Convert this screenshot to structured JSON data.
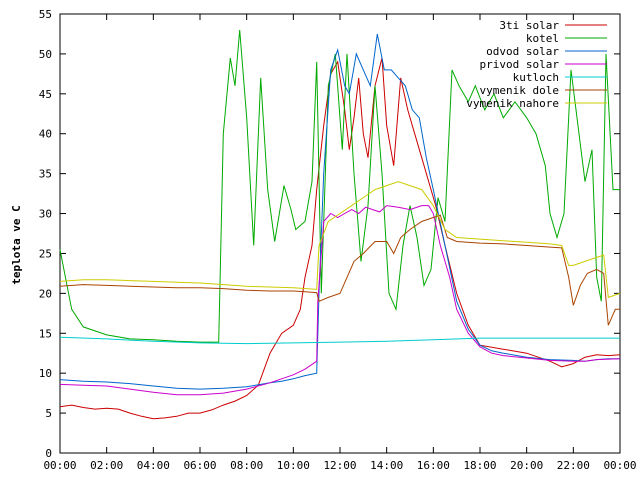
{
  "chart_data": {
    "type": "line",
    "title": "",
    "xlabel": "",
    "ylabel": "teplota ve C",
    "xlim": [
      0,
      24
    ],
    "ylim": [
      0,
      55
    ],
    "x_ticks": [
      "00:00",
      "02:00",
      "04:00",
      "06:00",
      "08:00",
      "10:00",
      "12:00",
      "14:00",
      "16:00",
      "18:00",
      "20:00",
      "22:00",
      "00:00"
    ],
    "y_ticks": [
      0,
      5,
      10,
      15,
      20,
      25,
      30,
      35,
      40,
      45,
      50,
      55
    ],
    "grid": false,
    "legend_position": "top-right",
    "series": [
      {
        "name": "3ti solar",
        "color": "#cc0000",
        "points": [
          [
            0,
            5.8
          ],
          [
            0.5,
            6.0
          ],
          [
            1,
            5.7
          ],
          [
            1.5,
            5.5
          ],
          [
            2,
            5.6
          ],
          [
            2.5,
            5.5
          ],
          [
            3,
            5.0
          ],
          [
            3.5,
            4.6
          ],
          [
            4,
            4.3
          ],
          [
            4.5,
            4.4
          ],
          [
            5,
            4.6
          ],
          [
            5.5,
            5.0
          ],
          [
            6,
            5.0
          ],
          [
            6.5,
            5.4
          ],
          [
            7,
            6.0
          ],
          [
            7.5,
            6.5
          ],
          [
            8,
            7.2
          ],
          [
            8.5,
            8.5
          ],
          [
            9,
            12.5
          ],
          [
            9.5,
            15.0
          ],
          [
            10,
            16.0
          ],
          [
            10.3,
            18.0
          ],
          [
            10.5,
            22.0
          ],
          [
            10.8,
            26.0
          ],
          [
            11,
            33.0
          ],
          [
            11.3,
            41.0
          ],
          [
            11.6,
            47.5
          ],
          [
            11.9,
            49.0
          ],
          [
            12.2,
            43.0
          ],
          [
            12.4,
            38.0
          ],
          [
            12.6,
            42.0
          ],
          [
            12.8,
            47.0
          ],
          [
            13.0,
            40.0
          ],
          [
            13.2,
            37.0
          ],
          [
            13.5,
            46.0
          ],
          [
            13.8,
            49.5
          ],
          [
            14.0,
            41.0
          ],
          [
            14.3,
            36.0
          ],
          [
            14.6,
            47.0
          ],
          [
            14.9,
            43.0
          ],
          [
            15.2,
            40.0
          ],
          [
            15.5,
            37.0
          ],
          [
            15.8,
            34.0
          ],
          [
            16.1,
            31.0
          ],
          [
            16.5,
            26.0
          ],
          [
            17,
            20.0
          ],
          [
            17.5,
            16.0
          ],
          [
            18,
            13.5
          ],
          [
            19,
            13.0
          ],
          [
            20,
            12.5
          ],
          [
            21,
            11.5
          ],
          [
            21.5,
            10.8
          ],
          [
            22,
            11.2
          ],
          [
            22.5,
            12.0
          ],
          [
            23,
            12.3
          ],
          [
            23.5,
            12.2
          ],
          [
            24,
            12.3
          ]
        ]
      },
      {
        "name": "kotel",
        "color": "#00aa00",
        "points": [
          [
            0,
            25.5
          ],
          [
            0.5,
            18.0
          ],
          [
            1,
            15.8
          ],
          [
            2,
            14.8
          ],
          [
            3,
            14.3
          ],
          [
            4,
            14.2
          ],
          [
            5,
            14.0
          ],
          [
            6,
            13.9
          ],
          [
            6.8,
            13.9
          ],
          [
            7.0,
            40.0
          ],
          [
            7.3,
            49.5
          ],
          [
            7.5,
            46.0
          ],
          [
            7.7,
            53.0
          ],
          [
            8.0,
            42.0
          ],
          [
            8.3,
            26.0
          ],
          [
            8.6,
            47.0
          ],
          [
            8.9,
            33.0
          ],
          [
            9.2,
            26.5
          ],
          [
            9.6,
            33.5
          ],
          [
            9.9,
            30.5
          ],
          [
            10.1,
            28.0
          ],
          [
            10.5,
            29.0
          ],
          [
            10.8,
            34.0
          ],
          [
            11.0,
            49.0
          ],
          [
            11.2,
            20.0
          ],
          [
            11.5,
            46.0
          ],
          [
            11.8,
            50.0
          ],
          [
            12.1,
            38.0
          ],
          [
            12.3,
            50.0
          ],
          [
            12.6,
            35.0
          ],
          [
            12.9,
            24.0
          ],
          [
            13.2,
            31.0
          ],
          [
            13.5,
            46.0
          ],
          [
            13.8,
            35.0
          ],
          [
            14.1,
            20.0
          ],
          [
            14.4,
            18.0
          ],
          [
            14.7,
            26.0
          ],
          [
            15.0,
            31.0
          ],
          [
            15.3,
            27.0
          ],
          [
            15.6,
            21.0
          ],
          [
            15.9,
            23.0
          ],
          [
            16.2,
            32.0
          ],
          [
            16.5,
            29.0
          ],
          [
            16.8,
            48.0
          ],
          [
            17.1,
            46.0
          ],
          [
            17.5,
            44.0
          ],
          [
            17.8,
            46.0
          ],
          [
            18.2,
            43.0
          ],
          [
            18.6,
            45.0
          ],
          [
            19.0,
            42.0
          ],
          [
            19.5,
            44.0
          ],
          [
            20.0,
            42.0
          ],
          [
            20.4,
            40.0
          ],
          [
            20.8,
            36.0
          ],
          [
            21.0,
            30.0
          ],
          [
            21.3,
            27.0
          ],
          [
            21.6,
            30.0
          ],
          [
            21.9,
            48.0
          ],
          [
            22.2,
            41.0
          ],
          [
            22.5,
            34.0
          ],
          [
            22.8,
            38.0
          ],
          [
            23.0,
            22.0
          ],
          [
            23.2,
            19.0
          ],
          [
            23.4,
            50.0
          ],
          [
            23.7,
            33.0
          ],
          [
            24,
            33.0
          ]
        ]
      },
      {
        "name": "odvod solar",
        "color": "#0066cc",
        "points": [
          [
            0,
            9.2
          ],
          [
            1,
            9.0
          ],
          [
            2,
            8.9
          ],
          [
            3,
            8.7
          ],
          [
            4,
            8.4
          ],
          [
            5,
            8.1
          ],
          [
            6,
            8.0
          ],
          [
            7,
            8.1
          ],
          [
            8,
            8.3
          ],
          [
            9,
            8.8
          ],
          [
            9.5,
            9.0
          ],
          [
            10,
            9.3
          ],
          [
            10.5,
            9.7
          ],
          [
            11,
            10.0
          ],
          [
            11.1,
            20.0
          ],
          [
            11.3,
            35.0
          ],
          [
            11.6,
            48.0
          ],
          [
            11.9,
            50.5
          ],
          [
            12.2,
            46.0
          ],
          [
            12.4,
            45.0
          ],
          [
            12.7,
            50.0
          ],
          [
            13.0,
            48.0
          ],
          [
            13.3,
            46.0
          ],
          [
            13.6,
            52.5
          ],
          [
            13.9,
            48.0
          ],
          [
            14.2,
            48.0
          ],
          [
            14.5,
            47.0
          ],
          [
            14.8,
            46.0
          ],
          [
            15.1,
            43.0
          ],
          [
            15.4,
            42.0
          ],
          [
            15.7,
            37.0
          ],
          [
            16.0,
            33.0
          ],
          [
            16.5,
            26.0
          ],
          [
            17,
            19.0
          ],
          [
            17.5,
            15.5
          ],
          [
            18,
            13.5
          ],
          [
            18.5,
            12.8
          ],
          [
            19,
            12.5
          ],
          [
            20,
            12.0
          ],
          [
            21,
            11.7
          ],
          [
            22,
            11.6
          ],
          [
            22.5,
            11.5
          ],
          [
            23,
            11.7
          ],
          [
            23.5,
            11.8
          ],
          [
            24,
            11.8
          ]
        ]
      },
      {
        "name": "privod solar",
        "color": "#cc00cc",
        "points": [
          [
            0,
            8.6
          ],
          [
            1,
            8.5
          ],
          [
            2,
            8.4
          ],
          [
            3,
            8.0
          ],
          [
            4,
            7.6
          ],
          [
            5,
            7.3
          ],
          [
            6,
            7.3
          ],
          [
            7,
            7.5
          ],
          [
            8,
            8.0
          ],
          [
            9,
            8.8
          ],
          [
            9.5,
            9.3
          ],
          [
            10,
            9.8
          ],
          [
            10.5,
            10.5
          ],
          [
            11,
            11.5
          ],
          [
            11.05,
            19.0
          ],
          [
            11.3,
            29.0
          ],
          [
            11.6,
            30.0
          ],
          [
            11.9,
            29.5
          ],
          [
            12.2,
            30.0
          ],
          [
            12.5,
            30.5
          ],
          [
            12.8,
            30.0
          ],
          [
            13.1,
            30.8
          ],
          [
            13.4,
            30.5
          ],
          [
            13.7,
            30.2
          ],
          [
            14.0,
            31.0
          ],
          [
            14.5,
            30.8
          ],
          [
            15.0,
            30.5
          ],
          [
            15.5,
            31.0
          ],
          [
            15.8,
            31.0
          ],
          [
            16.0,
            30.0
          ],
          [
            16.3,
            26.0
          ],
          [
            16.7,
            22.0
          ],
          [
            17,
            18.0
          ],
          [
            17.5,
            15.0
          ],
          [
            18,
            13.3
          ],
          [
            18.5,
            12.5
          ],
          [
            19,
            12.2
          ],
          [
            20,
            11.9
          ],
          [
            21,
            11.6
          ],
          [
            22,
            11.5
          ],
          [
            22.5,
            11.5
          ],
          [
            23,
            11.7
          ],
          [
            24,
            11.8
          ]
        ]
      },
      {
        "name": "kutloch",
        "color": "#00cccc",
        "points": [
          [
            0,
            14.5
          ],
          [
            2,
            14.3
          ],
          [
            4,
            14.0
          ],
          [
            6,
            13.8
          ],
          [
            8,
            13.7
          ],
          [
            10,
            13.8
          ],
          [
            12,
            13.9
          ],
          [
            14,
            14.0
          ],
          [
            16,
            14.2
          ],
          [
            18,
            14.4
          ],
          [
            20,
            14.4
          ],
          [
            22,
            14.4
          ],
          [
            24,
            14.4
          ]
        ]
      },
      {
        "name": "vymenik dole",
        "color": "#aa4400",
        "points": [
          [
            0,
            20.9
          ],
          [
            1,
            21.1
          ],
          [
            2,
            21.0
          ],
          [
            3,
            20.9
          ],
          [
            4,
            20.8
          ],
          [
            5,
            20.7
          ],
          [
            6,
            20.7
          ],
          [
            7,
            20.6
          ],
          [
            8,
            20.4
          ],
          [
            9,
            20.3
          ],
          [
            10,
            20.3
          ],
          [
            10.5,
            20.2
          ],
          [
            11.0,
            20.1
          ],
          [
            11.1,
            19.0
          ],
          [
            11.5,
            19.5
          ],
          [
            12.0,
            20.0
          ],
          [
            12.3,
            22.0
          ],
          [
            12.6,
            24.0
          ],
          [
            13.0,
            25.0
          ],
          [
            13.5,
            26.5
          ],
          [
            14.0,
            26.5
          ],
          [
            14.3,
            25.0
          ],
          [
            14.6,
            27.0
          ],
          [
            15.0,
            28.0
          ],
          [
            15.5,
            29.0
          ],
          [
            16.0,
            29.5
          ],
          [
            16.3,
            29.8
          ],
          [
            16.6,
            27.0
          ],
          [
            17,
            26.5
          ],
          [
            18,
            26.3
          ],
          [
            19,
            26.2
          ],
          [
            20,
            26.0
          ],
          [
            21,
            25.8
          ],
          [
            21.5,
            25.7
          ],
          [
            21.8,
            22.0
          ],
          [
            22.0,
            18.5
          ],
          [
            22.3,
            21.0
          ],
          [
            22.6,
            22.5
          ],
          [
            23.0,
            23.0
          ],
          [
            23.3,
            22.5
          ],
          [
            23.5,
            16.0
          ],
          [
            23.8,
            18.0
          ],
          [
            24,
            18.0
          ]
        ]
      },
      {
        "name": "vymenik nahore",
        "color": "#cccc00",
        "points": [
          [
            0,
            21.5
          ],
          [
            1,
            21.7
          ],
          [
            2,
            21.7
          ],
          [
            3,
            21.6
          ],
          [
            4,
            21.5
          ],
          [
            5,
            21.4
          ],
          [
            6,
            21.3
          ],
          [
            7,
            21.1
          ],
          [
            8,
            20.9
          ],
          [
            9,
            20.8
          ],
          [
            10,
            20.7
          ],
          [
            11,
            20.5
          ],
          [
            11.1,
            26.0
          ],
          [
            11.5,
            29.0
          ],
          [
            12.0,
            30.0
          ],
          [
            12.5,
            31.0
          ],
          [
            13.0,
            32.0
          ],
          [
            13.5,
            33.0
          ],
          [
            14.0,
            33.5
          ],
          [
            14.5,
            34.0
          ],
          [
            15.0,
            33.5
          ],
          [
            15.5,
            33.0
          ],
          [
            16.0,
            31.0
          ],
          [
            16.5,
            28.0
          ],
          [
            17,
            27.0
          ],
          [
            18,
            26.8
          ],
          [
            19,
            26.6
          ],
          [
            20,
            26.4
          ],
          [
            21,
            26.2
          ],
          [
            21.5,
            26.0
          ],
          [
            21.8,
            23.5
          ],
          [
            22.0,
            23.5
          ],
          [
            22.5,
            24.0
          ],
          [
            23.0,
            24.5
          ],
          [
            23.3,
            24.8
          ],
          [
            23.5,
            19.5
          ],
          [
            24,
            20.0
          ]
        ]
      }
    ]
  }
}
